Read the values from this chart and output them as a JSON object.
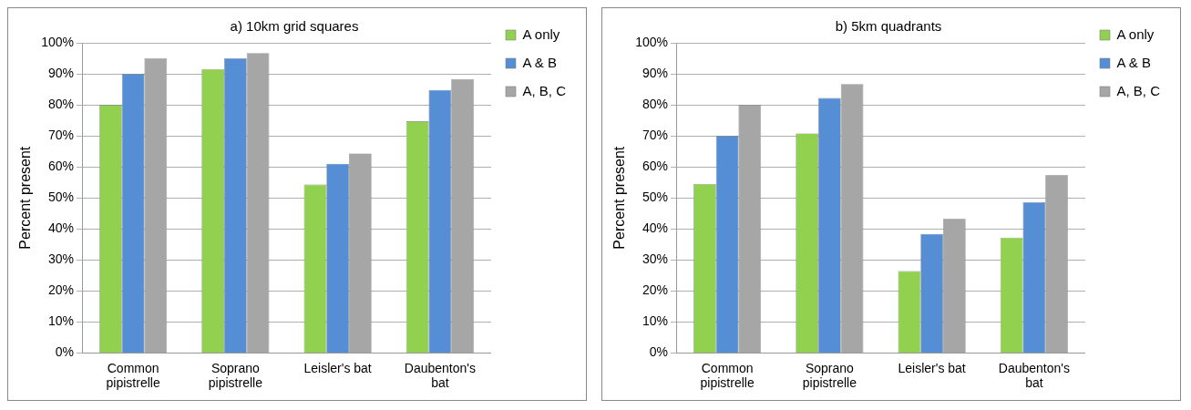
{
  "chart_data": [
    {
      "type": "bar",
      "title": "a) 10km grid squares",
      "ylabel": "Percent present",
      "categories": [
        "Common pipistrelle",
        "Soprano pipistrelle",
        "Leisler's bat",
        "Daubenton's bat"
      ],
      "series": [
        {
          "name": "A only",
          "color": "#92d050",
          "values": [
            80,
            91.5,
            54.3,
            74.7
          ]
        },
        {
          "name": "A & B",
          "color": "#558ed5",
          "values": [
            90,
            95,
            61,
            84.8
          ]
        },
        {
          "name": "A, B, C",
          "color": "#a6a6a6",
          "values": [
            95,
            96.7,
            64.3,
            88.3
          ]
        }
      ],
      "ylim": [
        0,
        100
      ],
      "yticks": [
        {
          "value": 0,
          "label": "0%"
        },
        {
          "value": 10,
          "label": "10%"
        },
        {
          "value": 20,
          "label": "20%"
        },
        {
          "value": 30,
          "label": "30%"
        },
        {
          "value": 40,
          "label": "40%"
        },
        {
          "value": 50,
          "label": "50%"
        },
        {
          "value": 60,
          "label": "60%"
        },
        {
          "value": 70,
          "label": "70%"
        },
        {
          "value": 80,
          "label": "80%"
        },
        {
          "value": 90,
          "label": "90%"
        },
        {
          "value": 100,
          "label": "100%"
        }
      ],
      "grid": "y",
      "legend": "top right"
    },
    {
      "type": "bar",
      "title": "b) 5km quadrants",
      "ylabel": "Percent present",
      "categories": [
        "Common pipistrelle",
        "Soprano pipistrelle",
        "Leisler's bat",
        "Daubenton's bat"
      ],
      "series": [
        {
          "name": "A only",
          "color": "#92d050",
          "values": [
            54.5,
            70.8,
            26.4,
            37.2
          ]
        },
        {
          "name": "A & B",
          "color": "#558ed5",
          "values": [
            70,
            82.2,
            38.4,
            48.6
          ]
        },
        {
          "name": "A, B, C",
          "color": "#a6a6a6",
          "values": [
            80,
            86.7,
            43.2,
            57.3
          ]
        }
      ],
      "ylim": [
        0,
        100
      ],
      "yticks": [
        {
          "value": 0,
          "label": "0%"
        },
        {
          "value": 10,
          "label": "10%"
        },
        {
          "value": 20,
          "label": "20%"
        },
        {
          "value": 30,
          "label": "30%"
        },
        {
          "value": 40,
          "label": "40%"
        },
        {
          "value": 50,
          "label": "50%"
        },
        {
          "value": 60,
          "label": "60%"
        },
        {
          "value": 70,
          "label": "70%"
        },
        {
          "value": 80,
          "label": "80%"
        },
        {
          "value": 90,
          "label": "90%"
        },
        {
          "value": 100,
          "label": "100%"
        }
      ],
      "grid": "y",
      "legend": "top right"
    }
  ]
}
